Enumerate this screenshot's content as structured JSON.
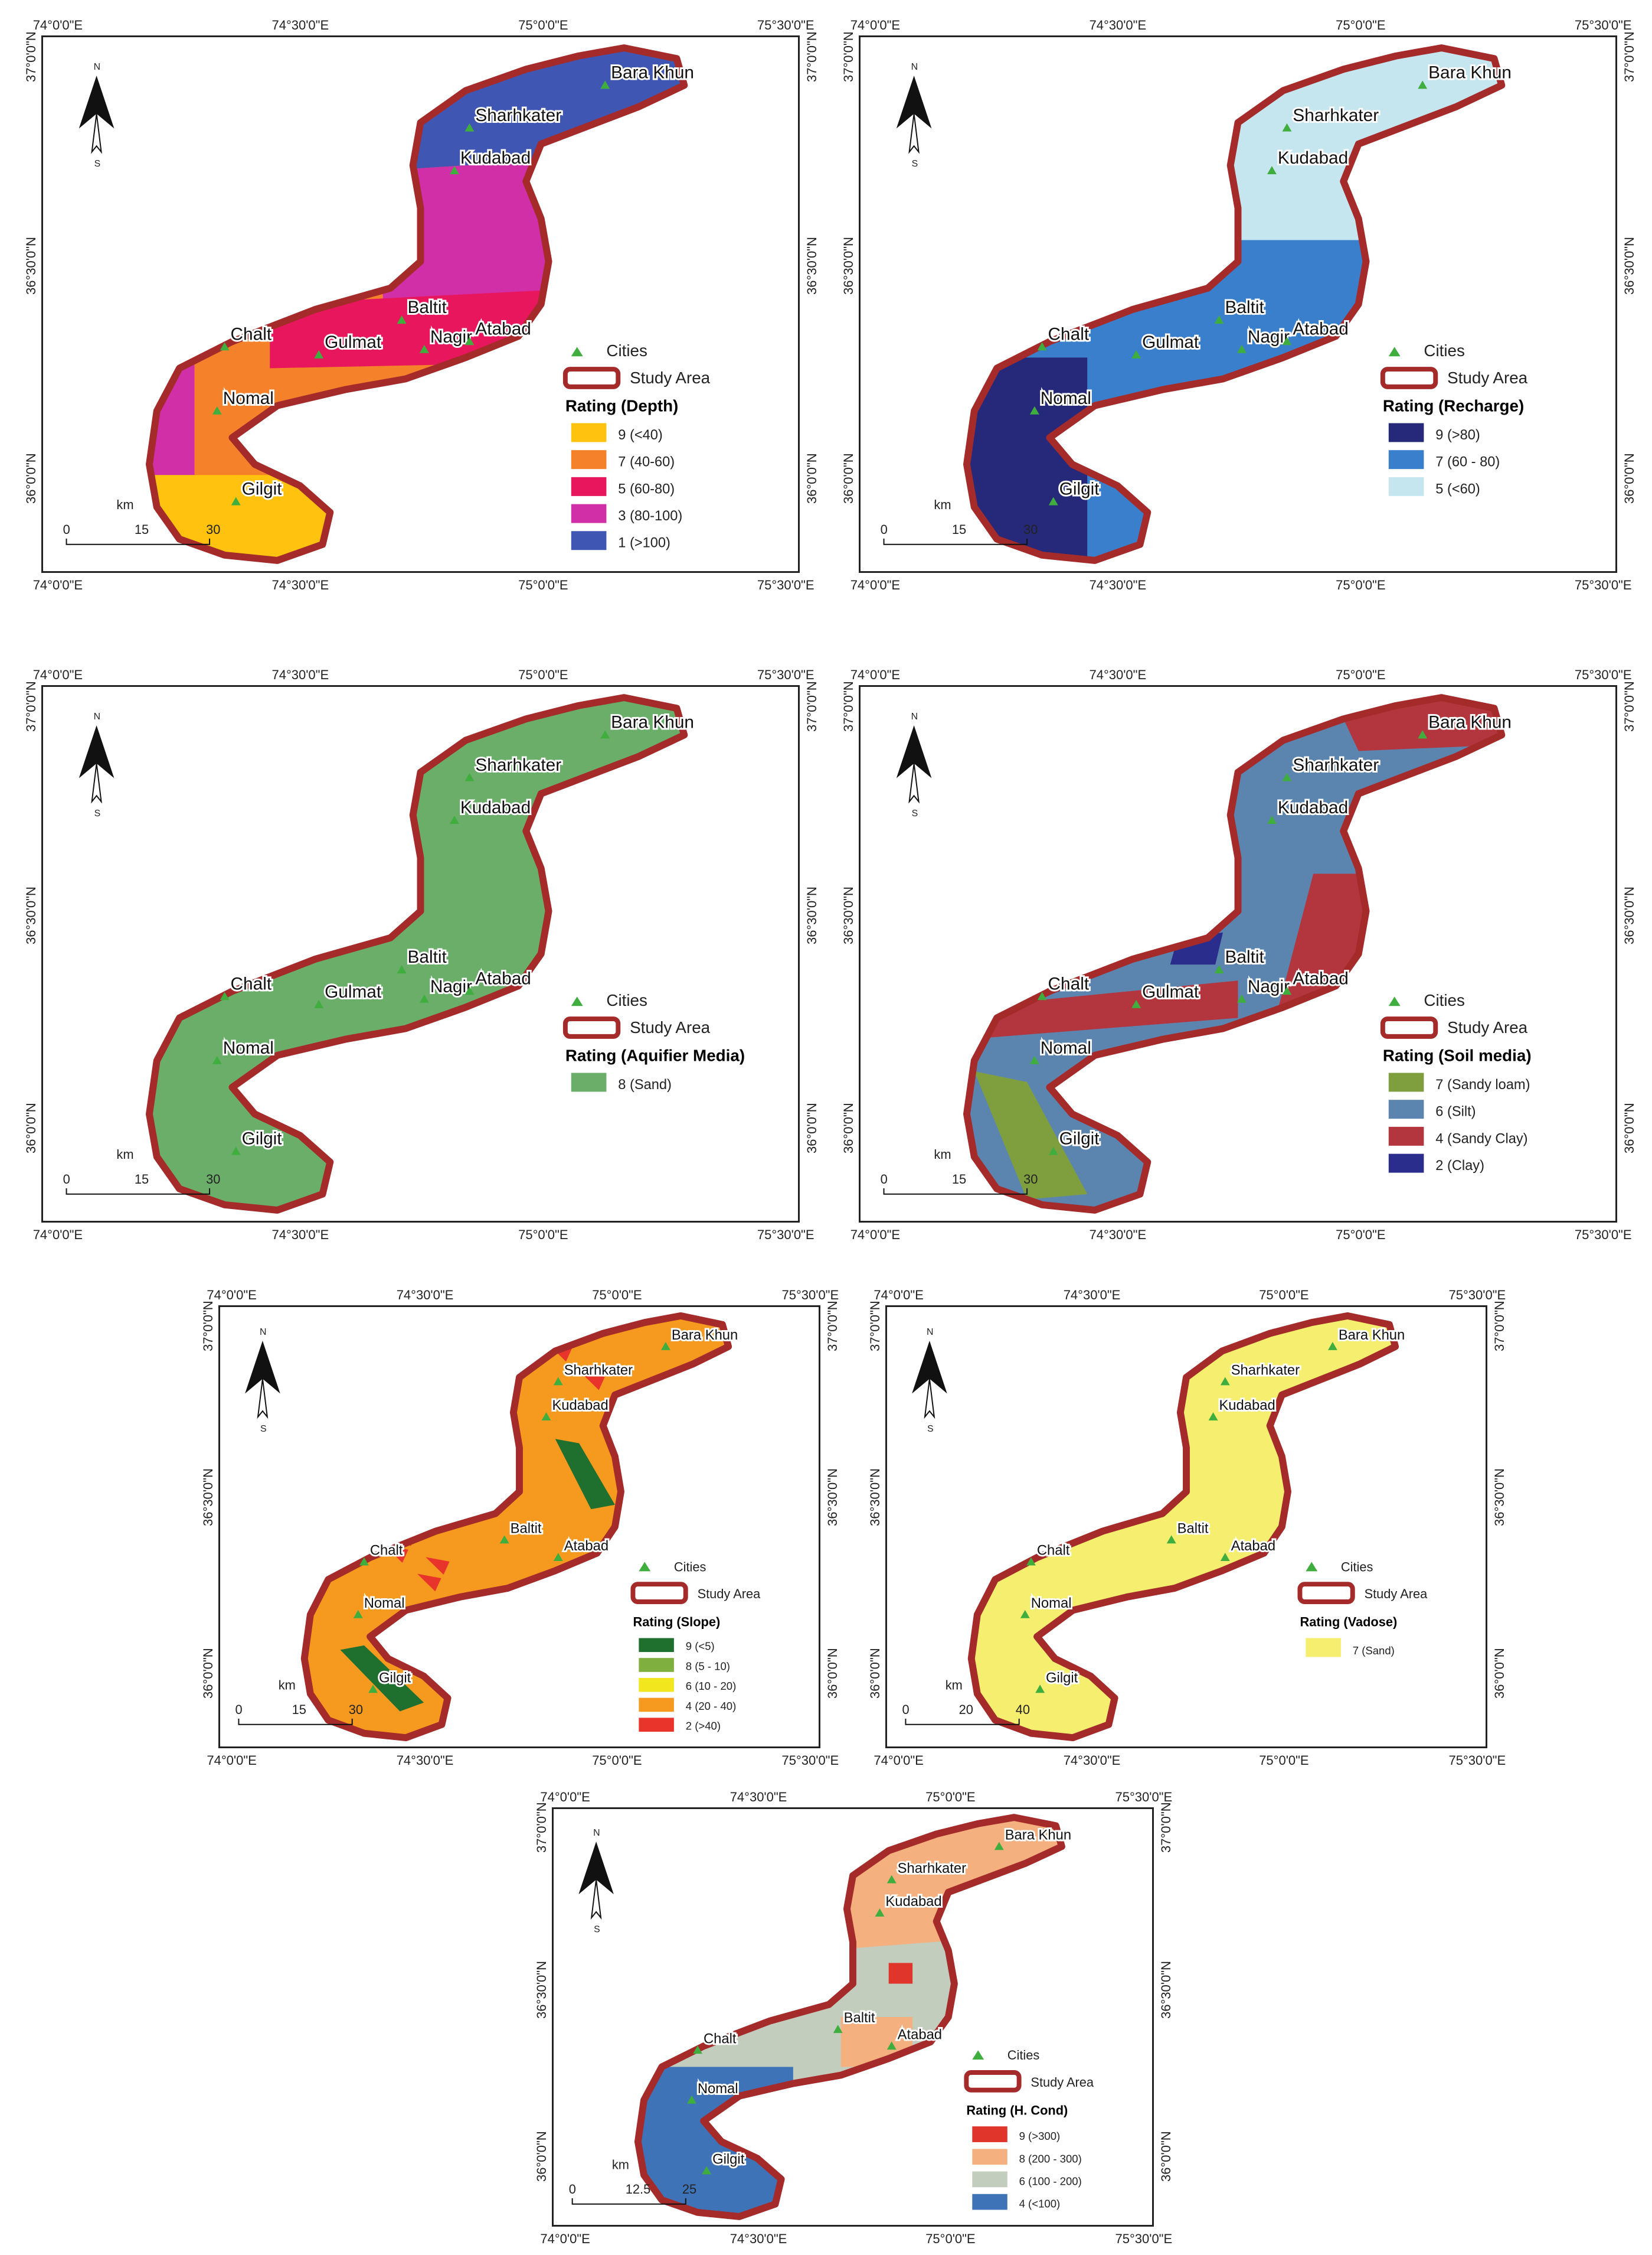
{
  "common": {
    "cities_label": "Cities",
    "study_area_label": "Study Area",
    "north_label": "N",
    "south_label": "S",
    "scale_unit": "km",
    "lon_ticks": [
      "74°0'0\"E",
      "74°30'0\"E",
      "75°0'0\"E",
      "75°30'0\"E"
    ],
    "lat_ticks": [
      "37°0'0\"N",
      "36°30'0\"N",
      "36°0'0\"N"
    ],
    "colors": {
      "study_area_border": "#a52a2a",
      "city_marker": "#3fae3f"
    }
  },
  "maps": [
    {
      "id": "depth",
      "legend_title": "Rating (Depth)",
      "scale_ticks": [
        "0",
        "15",
        "30"
      ],
      "cities": [
        "Bara Khun",
        "Sharhkater",
        "Kudabad",
        "Baltit",
        "Nagir",
        "Atabad",
        "Chalt",
        "Gulmat",
        "Nomal",
        "Gilgit"
      ],
      "classes": [
        {
          "label": "9 (<40)",
          "color": "#ffc20e"
        },
        {
          "label": "7 (40-60)",
          "color": "#f5822a"
        },
        {
          "label": "5 (60-80)",
          "color": "#e8175d"
        },
        {
          "label": "3 (80-100)",
          "color": "#d12fa8"
        },
        {
          "label": "1 (>100)",
          "color": "#3f57b3"
        }
      ]
    },
    {
      "id": "recharge",
      "legend_title": "Rating (Recharge)",
      "scale_ticks": [
        "0",
        "15",
        "30"
      ],
      "cities": [
        "Bara Khun",
        "Sharhkater",
        "Kudabad",
        "Baltit",
        "Nagir",
        "Atabad",
        "Chalt",
        "Gulmat",
        "Nomal",
        "Gilgit"
      ],
      "classes": [
        {
          "label": "9 (>80)",
          "color": "#26297a"
        },
        {
          "label": "7 (60 - 80)",
          "color": "#3a7fcc"
        },
        {
          "label": "5 (<60)",
          "color": "#c6e6ef"
        }
      ]
    },
    {
      "id": "aquifer",
      "legend_title": "Rating (Aquifier Media)",
      "scale_ticks": [
        "0",
        "15",
        "30"
      ],
      "cities": [
        "Bara Khun",
        "Sharhkater",
        "Kudabad",
        "Baltit",
        "Nagir",
        "Atabad",
        "Chalt",
        "Gulmat",
        "Nomal",
        "Gilgit"
      ],
      "classes": [
        {
          "label": "8 (Sand)",
          "color": "#6aae6a"
        }
      ]
    },
    {
      "id": "soil",
      "legend_title": "Rating (Soil media)",
      "scale_ticks": [
        "0",
        "15",
        "30"
      ],
      "cities": [
        "Bara Khun",
        "Sharhkater",
        "Kudabad",
        "Baltit",
        "Nagir",
        "Atabad",
        "Chalt",
        "Gulmat",
        "Nomal",
        "Gilgit"
      ],
      "classes": [
        {
          "label": "7 (Sandy loam)",
          "color": "#7f9f3f"
        },
        {
          "label": "6 (Silt)",
          "color": "#5b85ae"
        },
        {
          "label": "4 (Sandy Clay)",
          "color": "#b3363f"
        },
        {
          "label": "2 (Clay)",
          "color": "#2b2d8c"
        }
      ]
    },
    {
      "id": "slope",
      "legend_title": "Rating (Slope)",
      "scale_ticks": [
        "0",
        "15",
        "30"
      ],
      "cities": [
        "Bara Khun",
        "Sharhkater",
        "Kudabad",
        "Baltit",
        "Atabad",
        "Chalt",
        "Nomal",
        "Gilgit"
      ],
      "classes": [
        {
          "label": "9 (<5)",
          "color": "#1f6f2f"
        },
        {
          "label": "8 (5 - 10)",
          "color": "#7fb03f"
        },
        {
          "label": "6 (10 - 20)",
          "color": "#f2e61f"
        },
        {
          "label": "4 (20 - 40)",
          "color": "#f59a1f"
        },
        {
          "label": "2 (>40)",
          "color": "#e8342a"
        }
      ]
    },
    {
      "id": "vadose",
      "legend_title": "Rating (Vadose)",
      "scale_ticks": [
        "0",
        "20",
        "40"
      ],
      "cities": [
        "Bara Khun",
        "Sharhkater",
        "Kudabad",
        "Baltit",
        "Atabad",
        "Chalt",
        "Nomal",
        "Gilgit"
      ],
      "classes": [
        {
          "label": "7 (Sand)",
          "color": "#f5ee6f"
        }
      ]
    },
    {
      "id": "hcond",
      "legend_title": "Rating (H. Cond)",
      "scale_ticks": [
        "0",
        "12.5",
        "25"
      ],
      "cities": [
        "Bara Khun",
        "Sharhkater",
        "Kudabad",
        "Baltit",
        "Atabad",
        "Chalt",
        "Nomal",
        "Gilgit"
      ],
      "classes": [
        {
          "label": "9 (>300)",
          "color": "#e0352a"
        },
        {
          "label": "8 (200 - 300)",
          "color": "#f5b07f"
        },
        {
          "label": "6 (100 - 200)",
          "color": "#c3cdbd"
        },
        {
          "label": "4 (<100)",
          "color": "#3f73b8"
        }
      ]
    }
  ]
}
